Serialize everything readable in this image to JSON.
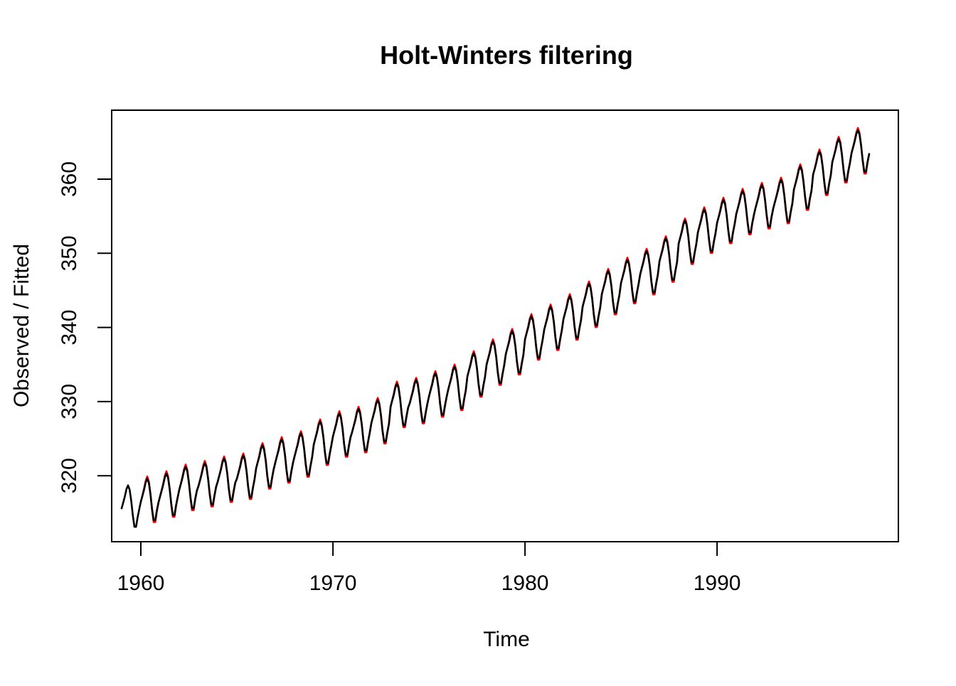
{
  "figure": {
    "background": "#FFFFFF",
    "text_color": "#000000"
  },
  "chart_data": {
    "type": "line",
    "title": "Holt-Winters filtering",
    "xlabel": "Time",
    "ylabel": "Observed / Fitted",
    "x_ticks": [
      1960,
      1970,
      1980,
      1990
    ],
    "y_ticks": [
      320,
      330,
      340,
      350,
      360
    ],
    "xlim": [
      1958.48,
      1999.44
    ],
    "ylim": [
      311.1,
      369.3
    ],
    "grid": false,
    "legend": "none",
    "frequency": 12,
    "series": [
      {
        "name": "observed",
        "color": "#000000",
        "start": 1959,
        "values": [
          315.6,
          316.4,
          317.2,
          318.2,
          318.7,
          318.1,
          316.6,
          314.6,
          313.1,
          313.1,
          314.4,
          315.5,
          316.5,
          317.3,
          318.1,
          319.1,
          319.6,
          319.0,
          317.5,
          315.5,
          314.0,
          314.0,
          315.3,
          316.4,
          317.2,
          318.0,
          318.8,
          319.8,
          320.3,
          319.7,
          318.2,
          316.2,
          314.7,
          314.7,
          316.0,
          317.1,
          318.1,
          318.9,
          319.7,
          320.7,
          321.2,
          320.6,
          319.1,
          317.1,
          315.6,
          315.6,
          316.9,
          318.0,
          318.6,
          319.4,
          320.2,
          321.2,
          321.7,
          321.1,
          319.6,
          317.6,
          316.1,
          316.1,
          317.4,
          318.5,
          319.2,
          320.0,
          320.8,
          321.8,
          322.3,
          321.7,
          320.2,
          318.2,
          316.7,
          316.7,
          318.0,
          319.1,
          319.6,
          320.4,
          321.2,
          322.2,
          322.7,
          322.1,
          320.6,
          318.6,
          317.1,
          317.1,
          318.4,
          319.5,
          321.0,
          321.8,
          322.6,
          323.6,
          324.1,
          323.5,
          322.0,
          320.0,
          318.5,
          318.5,
          319.8,
          320.9,
          321.8,
          322.6,
          323.4,
          324.4,
          324.9,
          324.3,
          322.8,
          320.8,
          319.3,
          319.3,
          320.6,
          321.7,
          322.6,
          323.4,
          324.2,
          325.2,
          325.7,
          325.1,
          323.6,
          321.6,
          320.1,
          320.1,
          321.4,
          322.5,
          324.2,
          325.0,
          325.8,
          326.8,
          327.3,
          326.7,
          325.2,
          323.2,
          321.7,
          321.7,
          323.0,
          324.1,
          325.3,
          326.1,
          326.9,
          327.9,
          328.4,
          327.8,
          326.3,
          324.3,
          322.8,
          322.8,
          324.1,
          325.2,
          325.9,
          326.7,
          327.5,
          328.5,
          329.0,
          328.4,
          326.9,
          324.9,
          323.4,
          323.4,
          324.7,
          325.8,
          327.1,
          327.9,
          328.7,
          329.7,
          330.2,
          329.6,
          328.1,
          326.1,
          324.6,
          324.6,
          325.9,
          327.0,
          329.3,
          330.1,
          330.9,
          331.9,
          332.4,
          331.8,
          330.3,
          328.3,
          326.8,
          326.8,
          328.1,
          329.2,
          329.8,
          330.6,
          331.4,
          332.4,
          332.9,
          332.3,
          330.8,
          328.8,
          327.3,
          327.3,
          328.6,
          329.7,
          330.7,
          331.5,
          332.3,
          333.3,
          333.8,
          333.2,
          331.7,
          329.7,
          328.2,
          328.2,
          329.5,
          330.6,
          331.6,
          332.4,
          333.2,
          334.2,
          334.7,
          334.1,
          332.6,
          330.6,
          329.1,
          329.1,
          330.4,
          331.5,
          333.4,
          334.2,
          335.0,
          336.0,
          336.5,
          335.9,
          334.4,
          332.4,
          330.9,
          330.9,
          332.2,
          333.3,
          335.0,
          335.8,
          336.6,
          337.6,
          338.1,
          337.5,
          336.0,
          334.0,
          332.5,
          332.5,
          333.8,
          334.9,
          336.4,
          337.2,
          338.0,
          339.0,
          339.5,
          338.9,
          337.4,
          335.4,
          333.9,
          333.9,
          335.2,
          336.3,
          338.4,
          339.2,
          340.0,
          341.0,
          341.5,
          340.9,
          339.4,
          337.4,
          335.9,
          335.9,
          337.2,
          338.3,
          339.7,
          340.5,
          341.3,
          342.3,
          342.8,
          342.2,
          340.7,
          338.7,
          337.2,
          337.2,
          338.5,
          339.6,
          341.1,
          341.9,
          342.7,
          343.7,
          344.2,
          343.6,
          342.1,
          340.1,
          338.6,
          338.6,
          339.9,
          341.0,
          342.8,
          343.6,
          344.4,
          345.4,
          345.9,
          345.3,
          343.8,
          341.8,
          340.3,
          340.3,
          341.6,
          342.7,
          344.5,
          345.3,
          346.1,
          347.1,
          347.6,
          347.0,
          345.5,
          343.5,
          342.0,
          342.0,
          343.3,
          344.4,
          346.0,
          346.8,
          347.6,
          348.6,
          349.1,
          348.5,
          347.0,
          345.0,
          343.5,
          343.5,
          344.8,
          345.9,
          347.2,
          348.0,
          348.8,
          349.8,
          350.3,
          349.7,
          348.2,
          346.2,
          344.7,
          344.7,
          346.0,
          347.1,
          348.9,
          349.7,
          350.5,
          351.5,
          352.0,
          351.4,
          349.9,
          347.9,
          346.4,
          346.4,
          347.7,
          348.8,
          351.3,
          352.1,
          352.9,
          353.9,
          354.4,
          353.8,
          352.3,
          350.3,
          348.8,
          348.8,
          350.1,
          351.2,
          352.8,
          353.6,
          354.4,
          355.4,
          355.9,
          355.3,
          353.8,
          351.8,
          350.3,
          350.3,
          351.6,
          352.7,
          354.1,
          354.9,
          355.7,
          356.7,
          357.2,
          356.6,
          355.1,
          353.1,
          351.6,
          351.6,
          352.9,
          354.0,
          355.3,
          356.1,
          356.9,
          357.9,
          358.4,
          357.8,
          356.3,
          354.3,
          352.8,
          352.8,
          354.1,
          355.2,
          356.1,
          356.9,
          357.7,
          358.7,
          359.2,
          358.6,
          357.1,
          355.1,
          353.6,
          353.6,
          354.9,
          356.0,
          356.8,
          357.6,
          358.4,
          359.4,
          359.9,
          359.3,
          357.8,
          355.8,
          354.3,
          354.3,
          355.6,
          356.7,
          358.6,
          359.4,
          360.2,
          361.2,
          361.7,
          361.1,
          359.6,
          357.6,
          356.1,
          356.1,
          357.4,
          358.5,
          360.6,
          361.4,
          362.2,
          363.2,
          363.7,
          363.1,
          361.6,
          359.6,
          358.1,
          358.1,
          359.4,
          360.5,
          362.3,
          363.1,
          363.9,
          364.9,
          365.4,
          364.8,
          363.3,
          361.3,
          359.8,
          359.8,
          361.1,
          362.2,
          363.5,
          364.3,
          365.1,
          366.1,
          366.6,
          366.0,
          364.5,
          362.5,
          361.0,
          361.0,
          362.3,
          363.4
        ]
      },
      {
        "name": "fitted",
        "color": "#FF0000",
        "start": 1960,
        "derived_from": "observed",
        "monthly_offsets": [
          0,
          0.05,
          0.15,
          0.2,
          0.3,
          0.2,
          0.1,
          -0.15,
          -0.25,
          -0.25,
          -0.1,
          -0.05
        ]
      }
    ]
  }
}
